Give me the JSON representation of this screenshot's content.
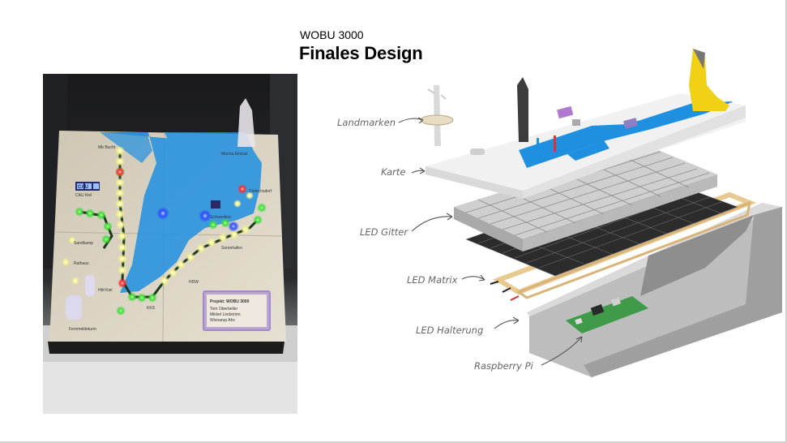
{
  "slide": {
    "subtitle": "WOBU 3000",
    "title": "Finales Design"
  },
  "photo": {
    "map_labels": {
      "mb_bucht": "Mb Bucht",
      "marina": "Marina Einmal",
      "cau_kiel": "CAU Kiel",
      "kiel_logo": "CAU",
      "sandkamp": "Sandkamp",
      "rathaus": "Rathaus",
      "hbf_kiel": "Hbf Kiel",
      "hdw": "HDW",
      "fernmeldeturm": "Fernmeldeturm",
      "kks": "KKS",
      "dietrichsdorf": "Dietrichsdorf",
      "schwentine": "Schwentine",
      "sorenhafen": "Sorenhafen",
      "plate_title": "Projekt: WOBU 3000",
      "plate_line1": "Tom Oberbeller",
      "plate_line2": "Mikkel Lindström",
      "plate_line3": "Wisnarup Ahs"
    }
  },
  "exploded": {
    "labels": {
      "landmarken": "Landmarken",
      "karte": "Karte",
      "led_gitter": "LED Gitter",
      "led_matrix": "LED Matrix",
      "led_halterung": "LED Halterung",
      "raspberry_pi": "Raspberry Pi"
    }
  },
  "colors": {
    "water": "#1f8fe0",
    "led_green": "#3ddc3a",
    "led_yellow": "#f4f28a",
    "led_red": "#ff2a2a",
    "led_blue": "#2a4dff",
    "pcb_green": "#3f9a4a",
    "frame_wood": "#e8c98f",
    "case_grey": "#c9c9c9"
  }
}
